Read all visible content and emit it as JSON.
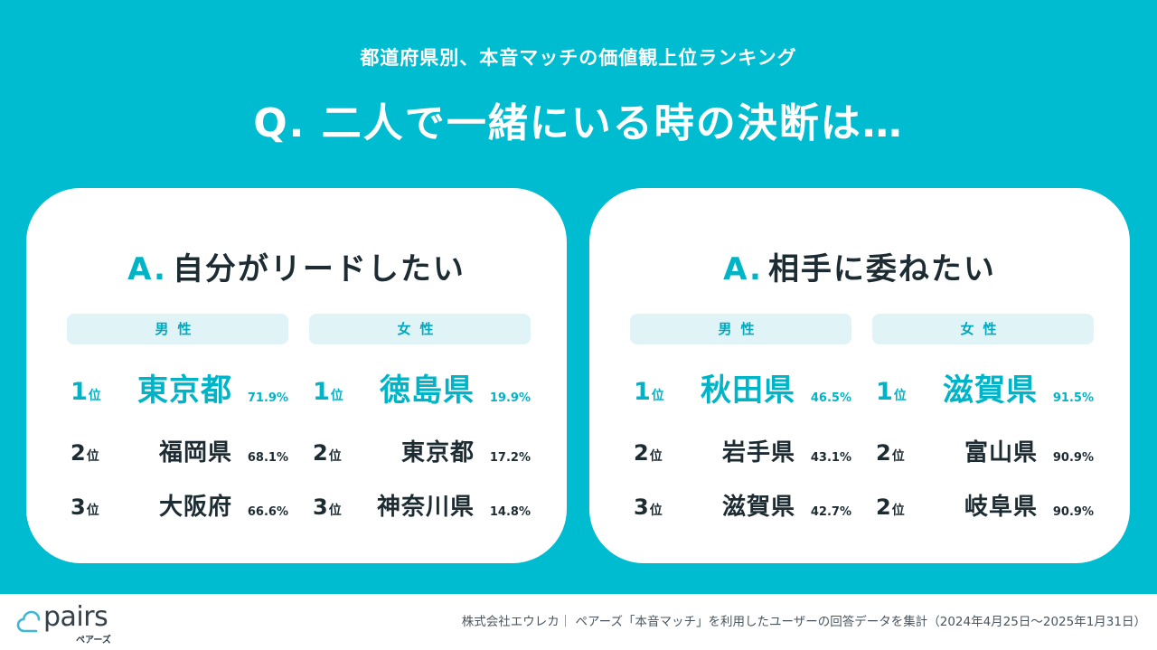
{
  "header": {
    "subtitle": "都道府県別、本音マッチの価値観上位ランキング",
    "question": "Q. 二人で一緒にいる時の決断は…"
  },
  "colors": {
    "background": "#00BCD0",
    "accent": "#00B4C8",
    "pill_bg": "#E0F4F7",
    "text_dark": "#1d2b33"
  },
  "cards": [
    {
      "answer_mark": "A.",
      "answer_text": "自分がリードしたい",
      "columns": [
        {
          "header": "男性",
          "rows": [
            {
              "rank": "1",
              "suffix": "位",
              "prefecture": "東京都",
              "percent": "71.9%"
            },
            {
              "rank": "2",
              "suffix": "位",
              "prefecture": "福岡県",
              "percent": "68.1%"
            },
            {
              "rank": "3",
              "suffix": "位",
              "prefecture": "大阪府",
              "percent": "66.6%"
            }
          ]
        },
        {
          "header": "女性",
          "rows": [
            {
              "rank": "1",
              "suffix": "位",
              "prefecture": "徳島県",
              "percent": "19.9%"
            },
            {
              "rank": "2",
              "suffix": "位",
              "prefecture": "東京都",
              "percent": "17.2%"
            },
            {
              "rank": "3",
              "suffix": "位",
              "prefecture": "神奈川県",
              "percent": "14.8%"
            }
          ]
        }
      ]
    },
    {
      "answer_mark": "A.",
      "answer_text": "相手に委ねたい",
      "columns": [
        {
          "header": "男性",
          "rows": [
            {
              "rank": "1",
              "suffix": "位",
              "prefecture": "秋田県",
              "percent": "46.5%"
            },
            {
              "rank": "2",
              "suffix": "位",
              "prefecture": "岩手県",
              "percent": "43.1%"
            },
            {
              "rank": "3",
              "suffix": "位",
              "prefecture": "滋賀県",
              "percent": "42.7%"
            }
          ]
        },
        {
          "header": "女性",
          "rows": [
            {
              "rank": "1",
              "suffix": "位",
              "prefecture": "滋賀県",
              "percent": "91.5%"
            },
            {
              "rank": "2",
              "suffix": "位",
              "prefecture": "富山県",
              "percent": "90.9%"
            },
            {
              "rank": "2",
              "suffix": "位",
              "prefecture": "岐阜県",
              "percent": "90.9%"
            }
          ]
        }
      ]
    }
  ],
  "footer": {
    "logo_text": "pairs",
    "logo_kana": "ペアーズ",
    "logo_icon": "cloud-icon",
    "note": "株式会社エウレカ｜ ペアーズ「本音マッチ」を利用したユーザーの回答データを集計（2024年4月25日〜2025年1月31日）"
  }
}
